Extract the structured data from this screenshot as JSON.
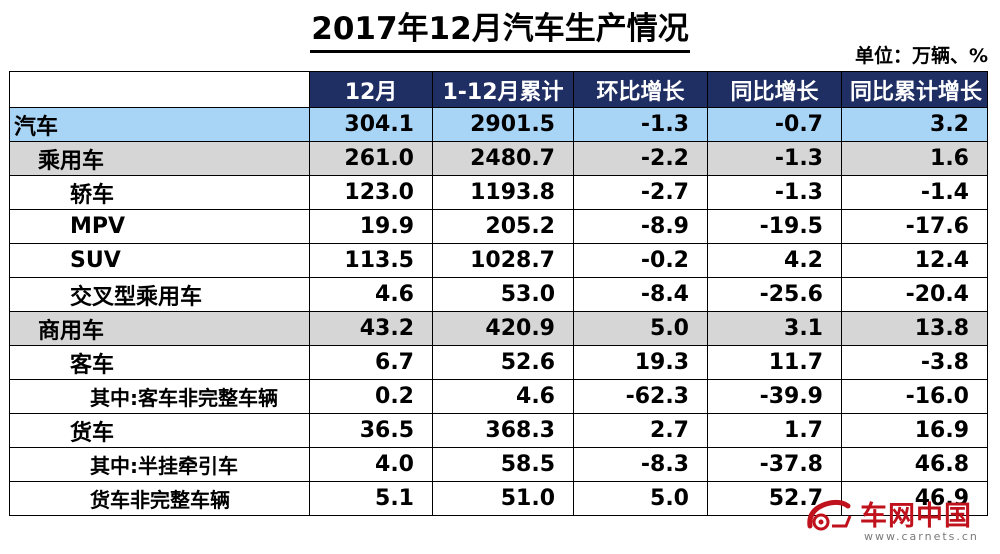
{
  "title": "2017年12月汽车生产情况",
  "unit": "单位：万辆、%",
  "columns": [
    "",
    "12月",
    "1-12月累计",
    "环比增长",
    "同比增长",
    "同比累计增长"
  ],
  "rows": [
    {
      "label": "汽车",
      "values": [
        "304.1",
        "2901.5",
        "-1.3",
        "-0.7",
        "3.2"
      ]
    },
    {
      "label": "乘用车",
      "values": [
        "261.0",
        "2480.7",
        "-2.2",
        "-1.3",
        "1.6"
      ]
    },
    {
      "label": "轿车",
      "values": [
        "123.0",
        "1193.8",
        "-2.7",
        "-1.3",
        "-1.4"
      ]
    },
    {
      "label": "MPV",
      "values": [
        "19.9",
        "205.2",
        "-8.9",
        "-19.5",
        "-17.6"
      ]
    },
    {
      "label": "SUV",
      "values": [
        "113.5",
        "1028.7",
        "-0.2",
        "4.2",
        "12.4"
      ]
    },
    {
      "label": "交叉型乘用车",
      "values": [
        "4.6",
        "53.0",
        "-8.4",
        "-25.6",
        "-20.4"
      ]
    },
    {
      "label": "商用车",
      "values": [
        "43.2",
        "420.9",
        "5.0",
        "3.1",
        "13.8"
      ]
    },
    {
      "label": "客车",
      "values": [
        "6.7",
        "52.6",
        "19.3",
        "11.7",
        "-3.8"
      ]
    },
    {
      "label": "其中:客车非完整车辆",
      "values": [
        "0.2",
        "4.6",
        "-62.3",
        "-39.9",
        "-16.0"
      ]
    },
    {
      "label": "货车",
      "values": [
        "36.5",
        "368.3",
        "2.7",
        "1.7",
        "16.9"
      ]
    },
    {
      "label": "其中:半挂牵引车",
      "values": [
        "4.0",
        "58.5",
        "-8.3",
        "-37.8",
        "46.8"
      ]
    },
    {
      "label": "货车非完整车辆",
      "values": [
        "5.1",
        "51.0",
        "5.0",
        "52.7",
        "46.9"
      ]
    }
  ],
  "colors": {
    "header_bg": "#1f2e63",
    "total_row_bg": "#a8d4f6",
    "group_row_bg": "#d6d6d6",
    "watermark_red": "#c0121c"
  },
  "watermark": {
    "text": "车网中国",
    "url": "www.carnets.cn",
    "icon": "carnets-logo-icon"
  }
}
